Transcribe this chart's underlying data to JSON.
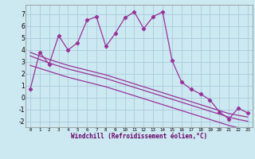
{
  "xlabel": "Windchill (Refroidissement éolien,°C)",
  "background_color": "#cce8f0",
  "grid_color": "#aaccdd",
  "line_color": "#993399",
  "series1_x": [
    0,
    1,
    2,
    3,
    4,
    5,
    6,
    7,
    8,
    9,
    10,
    11,
    12,
    13,
    14,
    15,
    16,
    17,
    18,
    19,
    20,
    21,
    22,
    23
  ],
  "series1_y": [
    0.7,
    3.8,
    2.8,
    5.2,
    4.0,
    4.6,
    6.5,
    6.8,
    4.3,
    5.4,
    6.7,
    7.2,
    5.8,
    6.8,
    7.2,
    3.1,
    1.3,
    0.7,
    0.3,
    -0.2,
    -1.2,
    -1.8,
    -0.9,
    -1.3
  ],
  "series2_x": [
    0,
    1,
    2,
    3,
    4,
    5,
    6,
    7,
    8,
    9,
    10,
    11,
    12,
    13,
    14,
    15,
    16,
    17,
    18,
    19,
    20,
    21,
    22,
    23
  ],
  "series2_y": [
    3.8,
    3.5,
    3.2,
    2.95,
    2.7,
    2.5,
    2.3,
    2.1,
    1.9,
    1.65,
    1.4,
    1.15,
    0.9,
    0.65,
    0.4,
    0.15,
    -0.1,
    -0.35,
    -0.6,
    -0.85,
    -1.1,
    -1.35,
    -1.5,
    -1.65
  ],
  "series3_x": [
    0,
    1,
    2,
    3,
    4,
    5,
    6,
    7,
    8,
    9,
    10,
    11,
    12,
    13,
    14,
    15,
    16,
    17,
    18,
    19,
    20,
    21,
    22,
    23
  ],
  "series3_y": [
    3.5,
    3.2,
    2.9,
    2.65,
    2.4,
    2.2,
    2.0,
    1.8,
    1.6,
    1.35,
    1.1,
    0.85,
    0.6,
    0.35,
    0.1,
    -0.15,
    -0.4,
    -0.65,
    -0.9,
    -1.15,
    -1.4,
    -1.65,
    -1.85,
    -2.0
  ],
  "series4_x": [
    0,
    1,
    2,
    3,
    4,
    5,
    6,
    7,
    8,
    9,
    10,
    11,
    12,
    13,
    14,
    15,
    16,
    17,
    18,
    19,
    20,
    21,
    22,
    23
  ],
  "series4_y": [
    2.7,
    2.45,
    2.2,
    1.95,
    1.7,
    1.5,
    1.3,
    1.1,
    0.9,
    0.65,
    0.4,
    0.15,
    -0.1,
    -0.35,
    -0.6,
    -0.85,
    -1.1,
    -1.35,
    -1.6,
    -1.85,
    -2.1,
    -2.35,
    -2.55,
    -2.7
  ],
  "xlim": [
    -0.5,
    23.5
  ],
  "ylim": [
    -2.5,
    7.8
  ],
  "yticks": [
    -2,
    -1,
    0,
    1,
    2,
    3,
    4,
    5,
    6,
    7
  ],
  "xticks": [
    0,
    1,
    2,
    3,
    4,
    5,
    6,
    7,
    8,
    9,
    10,
    11,
    12,
    13,
    14,
    15,
    16,
    17,
    18,
    19,
    20,
    21,
    22,
    23
  ]
}
